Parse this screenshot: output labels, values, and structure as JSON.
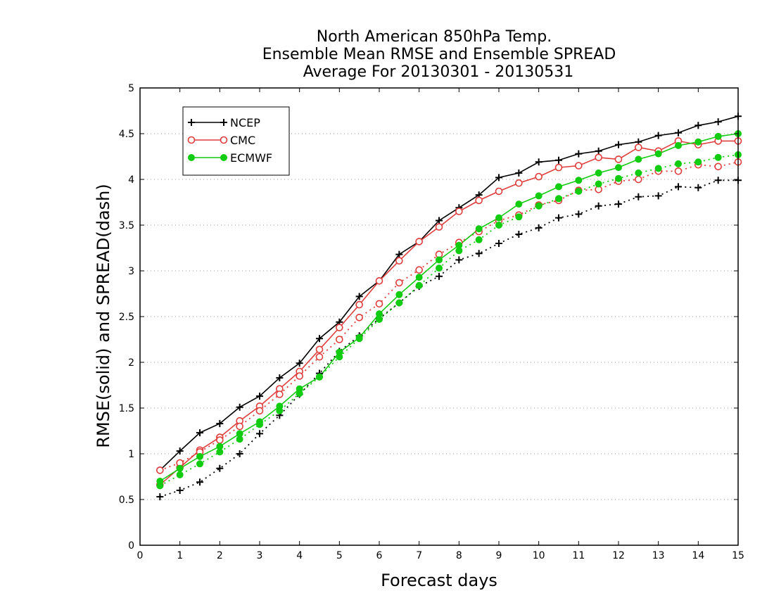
{
  "chart_data": {
    "type": "line",
    "title_lines": [
      "North American 850hPa Temp.",
      "Ensemble Mean RMSE and Ensemble SPREAD",
      "Average For 20130301 - 20130531"
    ],
    "xlabel": "Forecast days",
    "ylabel": "RMSE(solid) and SPREAD(dash)",
    "xlim": [
      0,
      15
    ],
    "ylim": [
      0,
      5
    ],
    "x_ticks": [
      "0",
      "1",
      "2",
      "3",
      "4",
      "5",
      "6",
      "7",
      "8",
      "9",
      "10",
      "11",
      "12",
      "13",
      "14",
      "15"
    ],
    "y_ticks": [
      "0",
      "0.5",
      "1",
      "1.5",
      "2",
      "2.5",
      "3",
      "3.5",
      "4",
      "4.5",
      "5"
    ],
    "grid": "horizontal dotted",
    "legend_position": "top-left",
    "x": [
      0.5,
      1.0,
      1.5,
      2.0,
      2.5,
      3.0,
      3.5,
      4.0,
      4.5,
      5.0,
      5.5,
      6.0,
      6.5,
      7.0,
      7.5,
      8.0,
      8.5,
      9.0,
      9.5,
      10.0,
      10.5,
      11.0,
      11.5,
      12.0,
      12.5,
      13.0,
      13.5,
      14.0,
      14.5,
      15.0
    ],
    "series": [
      {
        "name": "NCEP",
        "color": "#000000",
        "marker": "plus",
        "rmse": [
          0.82,
          1.03,
          1.23,
          1.33,
          1.51,
          1.63,
          1.83,
          1.99,
          2.26,
          2.44,
          2.72,
          2.89,
          3.18,
          3.32,
          3.55,
          3.69,
          3.83,
          4.02,
          4.07,
          4.19,
          4.21,
          4.28,
          4.31,
          4.38,
          4.41,
          4.48,
          4.51,
          4.59,
          4.63,
          4.69
        ],
        "spread": [
          0.53,
          0.6,
          0.69,
          0.84,
          1.0,
          1.22,
          1.42,
          1.65,
          1.88,
          2.12,
          2.29,
          2.48,
          2.65,
          2.83,
          2.94,
          3.12,
          3.19,
          3.3,
          3.4,
          3.47,
          3.58,
          3.62,
          3.71,
          3.73,
          3.81,
          3.82,
          3.92,
          3.91,
          3.99,
          3.99
        ]
      },
      {
        "name": "CMC",
        "color": "#e03c3c",
        "marker": "open-circle",
        "rmse": [
          0.66,
          0.85,
          1.04,
          1.18,
          1.36,
          1.52,
          1.71,
          1.9,
          2.14,
          2.38,
          2.63,
          2.89,
          3.11,
          3.32,
          3.48,
          3.65,
          3.77,
          3.87,
          3.96,
          4.03,
          4.13,
          4.15,
          4.24,
          4.22,
          4.35,
          4.31,
          4.42,
          4.38,
          4.42,
          4.42
        ],
        "spread": [
          0.82,
          0.9,
          1.02,
          1.15,
          1.3,
          1.47,
          1.65,
          1.85,
          2.06,
          2.25,
          2.49,
          2.64,
          2.87,
          3.01,
          3.18,
          3.31,
          3.43,
          3.55,
          3.61,
          3.72,
          3.77,
          3.88,
          3.89,
          3.98,
          4.0,
          4.09,
          4.09,
          4.16,
          4.14,
          4.19
        ]
      },
      {
        "name": "ECMWF",
        "color": "#11cc11",
        "marker": "filled-circle",
        "rmse": [
          0.7,
          0.84,
          0.97,
          1.08,
          1.22,
          1.35,
          1.52,
          1.71,
          1.84,
          2.11,
          2.27,
          2.53,
          2.74,
          2.93,
          3.12,
          3.28,
          3.46,
          3.58,
          3.73,
          3.82,
          3.92,
          3.99,
          4.07,
          4.13,
          4.22,
          4.28,
          4.37,
          4.41,
          4.47,
          4.5
        ],
        "spread": [
          0.65,
          0.77,
          0.89,
          1.02,
          1.16,
          1.32,
          1.47,
          1.66,
          1.84,
          2.06,
          2.26,
          2.47,
          2.65,
          2.84,
          3.03,
          3.22,
          3.34,
          3.5,
          3.59,
          3.71,
          3.79,
          3.87,
          3.95,
          4.01,
          4.07,
          4.12,
          4.17,
          4.19,
          4.24,
          4.27
        ]
      }
    ]
  }
}
